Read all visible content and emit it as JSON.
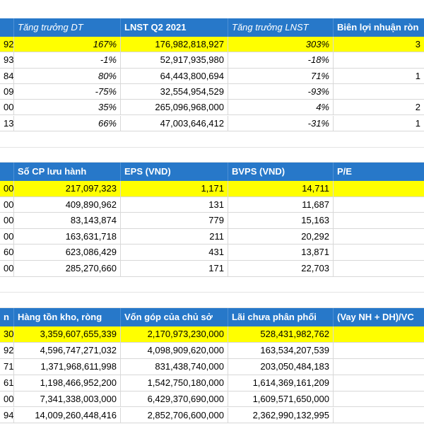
{
  "table1": {
    "headers": [
      "Tăng trưởng DT",
      "LNST Q2 2021",
      "Tăng trưởng LNST",
      "Biên lợi nhuận ròn"
    ],
    "rows": [
      [
        "92",
        "167%",
        "176,982,818,927",
        "303%",
        "3"
      ],
      [
        "93",
        "-1%",
        "52,917,935,980",
        "-18%",
        ""
      ],
      [
        "84",
        "80%",
        "64,443,800,694",
        "71%",
        "1"
      ],
      [
        "09",
        "-75%",
        "32,554,954,529",
        "-93%",
        ""
      ],
      [
        "00",
        "35%",
        "265,096,968,000",
        "4%",
        "2"
      ],
      [
        "13",
        "66%",
        "47,003,646,412",
        "-31%",
        "1"
      ]
    ]
  },
  "table2": {
    "headers": [
      "Số CP lưu hành",
      "EPS (VND)",
      "BVPS (VND)",
      "P/E"
    ],
    "rows": [
      [
        "00",
        "217,097,323",
        "1,171",
        "14,711",
        ""
      ],
      [
        "00",
        "409,890,962",
        "131",
        "11,687",
        ""
      ],
      [
        "00",
        "83,143,874",
        "779",
        "15,163",
        ""
      ],
      [
        "00",
        "163,631,718",
        "211",
        "20,292",
        ""
      ],
      [
        "60",
        "623,086,429",
        "431",
        "13,871",
        ""
      ],
      [
        "00",
        "285,270,660",
        "171",
        "22,703",
        ""
      ]
    ]
  },
  "table3": {
    "headers": [
      "n",
      "Hàng tồn kho, ròng",
      "Vốn góp của chủ sở",
      "Lãi chưa phân phối",
      "(Vay NH + DH)/VC"
    ],
    "rows": [
      [
        "30",
        "3,359,607,655,339",
        "2,170,973,230,000",
        "528,431,982,762",
        ""
      ],
      [
        "92",
        "4,596,747,271,032",
        "4,098,909,620,000",
        "163,534,207,539",
        ""
      ],
      [
        "71",
        "1,371,968,611,998",
        "831,438,740,000",
        "203,050,484,183",
        ""
      ],
      [
        "61",
        "1,198,466,952,200",
        "1,542,750,180,000",
        "1,614,369,161,209",
        ""
      ],
      [
        "00",
        "7,341,338,003,000",
        "6,429,370,690,000",
        "1,609,571,650,000",
        ""
      ],
      [
        "94",
        "14,009,260,448,416",
        "2,852,706,600,000",
        "2,362,990,132,995",
        ""
      ]
    ]
  },
  "colors": {
    "header_bg": "#2778c9",
    "highlight": "#ffff00",
    "grid": "#d8d8d8"
  }
}
